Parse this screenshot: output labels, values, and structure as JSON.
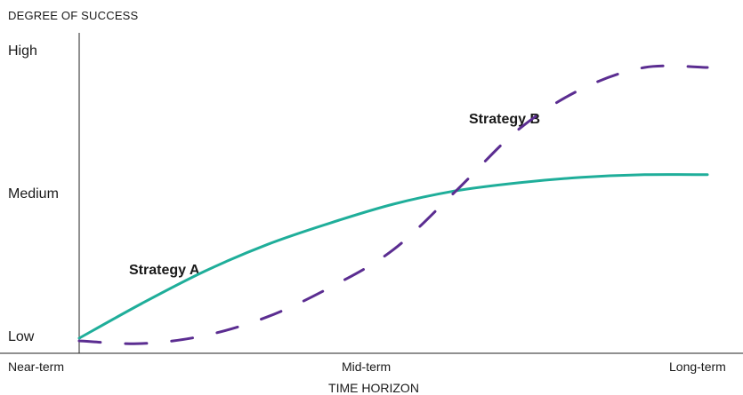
{
  "chart_data": {
    "type": "line",
    "ylabel": "DEGREE OF SUCCESS",
    "xlabel": "TIME HORIZON",
    "y_ticks": [
      "High",
      "Medium",
      "Low"
    ],
    "x_ticks": [
      "Near-term",
      "Mid-term",
      "Long-term"
    ],
    "x_numeric": [
      0,
      0.1,
      0.2,
      0.3,
      0.4,
      0.5,
      0.6,
      0.7,
      0.8,
      0.9,
      1.0
    ],
    "series": [
      {
        "name": "Strategy A",
        "color": "#1fae9a",
        "line_style": "solid",
        "values": [
          0.0,
          0.13,
          0.25,
          0.35,
          0.43,
          0.5,
          0.55,
          0.58,
          0.6,
          0.61,
          0.61
        ]
      },
      {
        "name": "Strategy B",
        "color": "#5b2d91",
        "line_style": "dashed",
        "values": [
          -0.01,
          -0.02,
          0.01,
          0.08,
          0.19,
          0.33,
          0.55,
          0.78,
          0.93,
          1.01,
          1.01
        ]
      }
    ],
    "ylim": [
      0,
      1
    ],
    "xlim": [
      0,
      1
    ],
    "grid": false,
    "legend": "inline-labels"
  }
}
